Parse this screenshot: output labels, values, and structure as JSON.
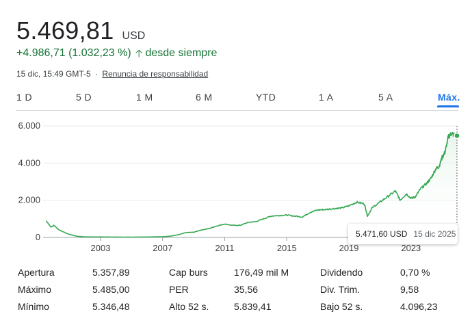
{
  "quote": {
    "price": "5.469,81",
    "currency": "USD",
    "change": "+4.986,71 (1.032,23 %)",
    "period": "desde siempre",
    "timestamp": "15 dic, 15:49 GMT-5",
    "separator": "·",
    "disclaimer": "Renuncia de responsabilidad",
    "change_color": "#137333"
  },
  "tabs": [
    {
      "label": "1 D",
      "active": false
    },
    {
      "label": "5 D",
      "active": false
    },
    {
      "label": "1 M",
      "active": false
    },
    {
      "label": "6 M",
      "active": false
    },
    {
      "label": "YTD",
      "active": false
    },
    {
      "label": "1 A",
      "active": false
    },
    {
      "label": "5 A",
      "active": false
    },
    {
      "label": "Máx.",
      "active": true
    }
  ],
  "tooltip": {
    "value": "5.471,60 USD",
    "date": "15 dic 2025"
  },
  "chart_data": {
    "type": "area",
    "line_color": "#34a853",
    "y_ticks": [
      0,
      2000,
      4000,
      6000
    ],
    "y_tick_labels": [
      "0",
      "2.000",
      "4.000",
      "6.000"
    ],
    "ylim": [
      0,
      6000
    ],
    "x_ticks": [
      2003,
      2007,
      2011,
      2015,
      2019,
      2023
    ],
    "x_tick_labels": [
      "2003",
      "2007",
      "2011",
      "2015",
      "2019",
      "2023"
    ],
    "xlim": [
      1999.3,
      2025.96
    ],
    "x": [
      1999.5,
      1999.8,
      2000.0,
      2000.3,
      2000.6,
      2001.0,
      2001.5,
      2002.0,
      2003.0,
      2004.0,
      2005.0,
      2006.0,
      2007.0,
      2007.5,
      2008.0,
      2008.5,
      2009.0,
      2009.5,
      2010.0,
      2010.5,
      2011.0,
      2011.5,
      2012.0,
      2012.5,
      2013.0,
      2013.5,
      2014.0,
      2014.5,
      2015.0,
      2015.5,
      2016.0,
      2016.5,
      2017.0,
      2017.5,
      2018.0,
      2018.5,
      2019.0,
      2019.5,
      2020.0,
      2020.2,
      2020.5,
      2021.0,
      2021.5,
      2022.0,
      2022.3,
      2022.7,
      2023.0,
      2023.3,
      2023.6,
      2024.0,
      2024.3,
      2024.6,
      2024.8,
      2025.0,
      2025.2,
      2025.4,
      2025.6,
      2025.8,
      2025.96
    ],
    "values": [
      900,
      560,
      650,
      420,
      300,
      160,
      60,
      30,
      25,
      20,
      20,
      25,
      35,
      70,
      140,
      260,
      280,
      400,
      480,
      620,
      720,
      650,
      650,
      810,
      850,
      1000,
      1150,
      1180,
      1200,
      1150,
      1100,
      1350,
      1480,
      1500,
      1550,
      1580,
      1700,
      1900,
      1800,
      1150,
      1600,
      1900,
      2200,
      2500,
      2000,
      2350,
      2100,
      2200,
      2600,
      2900,
      3200,
      3700,
      3800,
      4300,
      4600,
      5400,
      5600,
      5500,
      5471.6
    ],
    "tooltip_x": 2025.96
  },
  "stats": [
    [
      {
        "label": "Apertura",
        "value": "5.357,89"
      },
      {
        "label": "Máximo",
        "value": "5.485,00"
      },
      {
        "label": "Mínimo",
        "value": "5.346,48"
      }
    ],
    [
      {
        "label": "Cap burs",
        "value": "176,49 mil M"
      },
      {
        "label": "PER",
        "value": "35,56"
      },
      {
        "label": "Alto 52 s.",
        "value": "5.839,41"
      }
    ],
    [
      {
        "label": "Dividendo",
        "value": "0,70 %"
      },
      {
        "label": "Div. Trim.",
        "value": "9,58"
      },
      {
        "label": "Bajo 52 s.",
        "value": "4.096,23"
      }
    ]
  ]
}
